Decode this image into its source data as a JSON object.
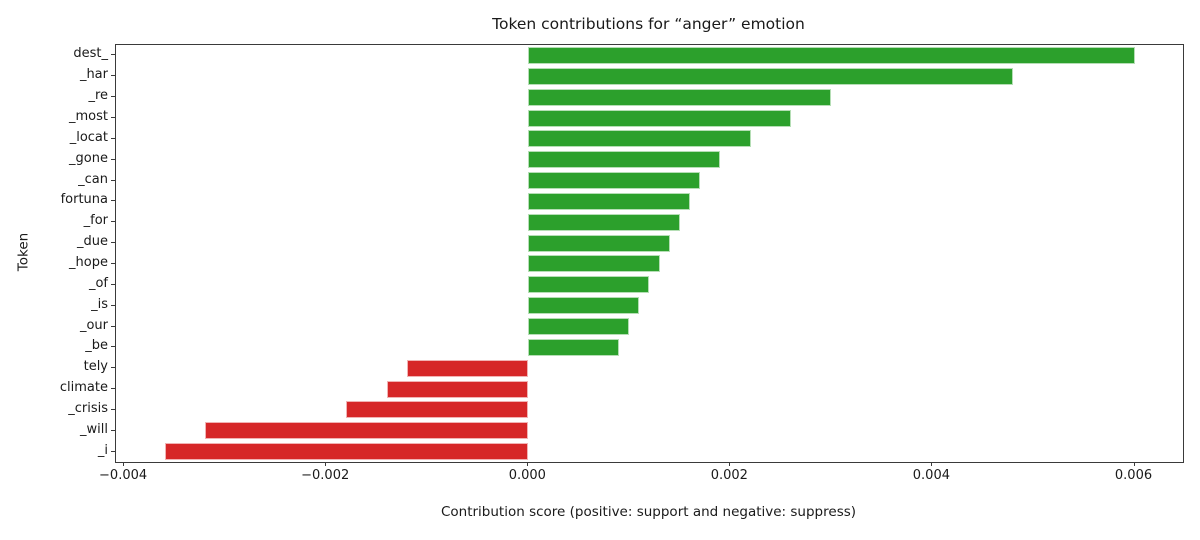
{
  "chart_data": {
    "type": "bar",
    "orientation": "horizontal",
    "title": "Token contributions for “anger” emotion",
    "xlabel": "Contribution score (positive: support and negative: suppress)",
    "ylabel": "Token",
    "categories": [
      "dest_",
      "_har",
      "_re",
      "_most",
      "_locat",
      "_gone",
      "_can",
      "fortuna",
      "_for",
      "_due",
      "_hope",
      "_of",
      "_is",
      "_our",
      "_be",
      "tely",
      "climate",
      "_crisis",
      "_will",
      "_i"
    ],
    "values": [
      0.006,
      0.0048,
      0.003,
      0.0026,
      0.0022,
      0.0019,
      0.0017,
      0.0016,
      0.0015,
      0.0014,
      0.0013,
      0.0012,
      0.0011,
      0.001,
      0.0009,
      -0.0012,
      -0.0014,
      -0.0018,
      -0.0032,
      -0.0036
    ],
    "xlim": [
      -0.00408,
      0.00648
    ],
    "xticks": [
      -0.004,
      -0.002,
      0.0,
      0.002,
      0.004,
      0.006
    ],
    "xtick_labels": [
      "−0.004",
      "−0.002",
      "0.000",
      "0.002",
      "0.004",
      "0.006"
    ],
    "positive_color": "#2ca02c",
    "negative_color": "#d62728",
    "grid": false,
    "legend_position": "none"
  }
}
